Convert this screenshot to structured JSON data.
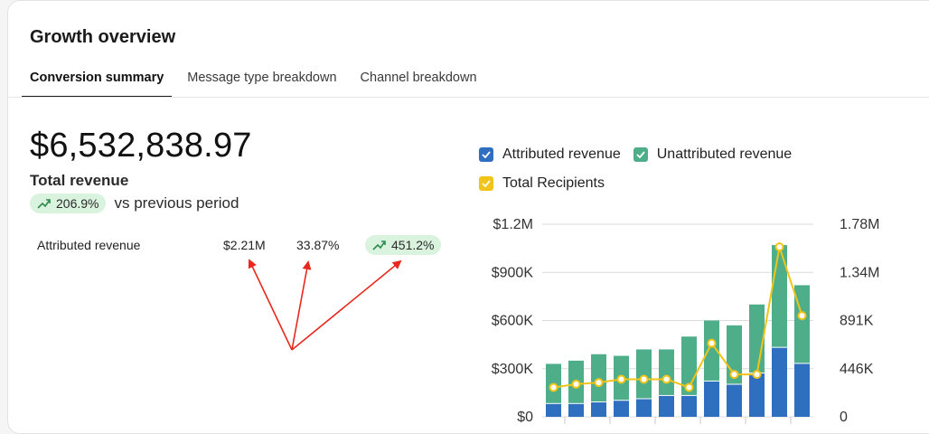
{
  "page": {
    "title": "Growth overview",
    "tabs": [
      {
        "label": "Conversion summary",
        "active": true
      },
      {
        "label": "Message type breakdown",
        "active": false
      },
      {
        "label": "Channel breakdown",
        "active": false
      }
    ]
  },
  "summary": {
    "total_value": "$6,532,838.97",
    "total_label": "Total revenue",
    "change_percent": "206.9%",
    "change_text": "vs previous period",
    "trend_icon": "trend-up-icon"
  },
  "attributed": {
    "label": "Attributed revenue",
    "amount": "$2.21M",
    "share": "33.87%",
    "change_percent": "451.2%"
  },
  "colors": {
    "attributed": "#2f6fbf",
    "unattributed": "#4fae8a",
    "recipients": "#f0c419",
    "pill_bg": "#d9f3df",
    "pill_icon": "#2e8b4e",
    "annotation_arrow": "#e8281e"
  },
  "chart_data": {
    "type": "bar",
    "stacked": true,
    "legend": [
      "Attributed revenue",
      "Unattributed revenue",
      "Total Recipients"
    ],
    "legend_placement": "top",
    "y_left_ticks": [
      "$1.2M",
      "$900K",
      "$600K",
      "$300K",
      "$0"
    ],
    "y_right_ticks": [
      "1.78M",
      "1.34M",
      "891K",
      "446K",
      "0"
    ],
    "ylim_left": [
      0,
      1200000
    ],
    "ylim_right": [
      0,
      1780000
    ],
    "grid": true,
    "series": [
      {
        "name": "Attributed revenue",
        "values": [
          80000,
          80000,
          90000,
          100000,
          110000,
          130000,
          130000,
          220000,
          200000,
          270000,
          430000,
          330000
        ]
      },
      {
        "name": "Unattributed revenue",
        "values": [
          250000,
          270000,
          300000,
          280000,
          310000,
          290000,
          370000,
          380000,
          370000,
          430000,
          640000,
          490000
        ]
      },
      {
        "name": "Total Recipients",
        "values": [
          272000,
          302000,
          317000,
          347000,
          347000,
          347000,
          272000,
          680000,
          392000,
          392000,
          1570000,
          935000
        ]
      }
    ]
  }
}
